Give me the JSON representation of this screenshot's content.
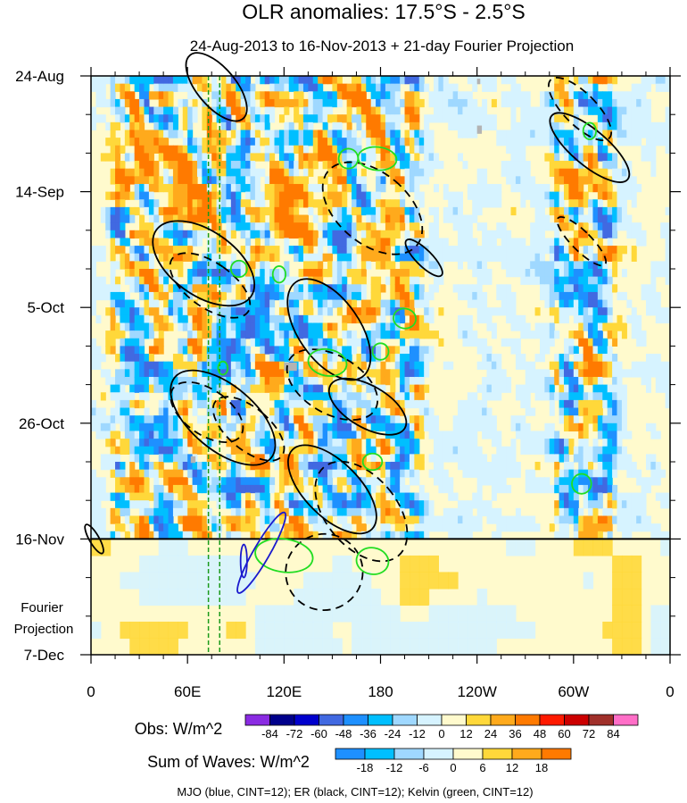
{
  "chart_data": {
    "type": "heatmap",
    "title": "OLR anomalies: 17.5°S - 2.5°S",
    "subtitle": "24-Aug-2013 to 16-Nov-2013 + 21-day Fourier Projection",
    "x_ticks": [
      "0",
      "60E",
      "120E",
      "180",
      "120W",
      "60W",
      "0"
    ],
    "x_tick_values": [
      0,
      60,
      120,
      180,
      240,
      300,
      360
    ],
    "xlim": [
      0,
      360
    ],
    "y_ticks": [
      "24-Aug",
      "14-Sep",
      "5-Oct",
      "26-Oct",
      "16-Nov",
      "7-Dec"
    ],
    "y_tick_days": [
      0,
      21,
      42,
      63,
      84,
      105
    ],
    "ylim_days": [
      0,
      105
    ],
    "obs_end_label": "16-Nov",
    "projection_label": [
      "Fourier",
      "Projection"
    ],
    "dashed_green_lines_lon": [
      73,
      80
    ],
    "obs_colorbar": {
      "label": "Obs: W/m^2",
      "levels": [
        "-84",
        "-72",
        "-60",
        "-48",
        "-36",
        "-24",
        "-12",
        "0",
        "12",
        "24",
        "36",
        "48",
        "60",
        "72",
        "84"
      ],
      "colors": [
        "#8a2be2",
        "#00008b",
        "#0000cd",
        "#4169e1",
        "#1e90ff",
        "#00bfff",
        "#9fd8ff",
        "#d6f3ff",
        "#fffacd",
        "#ffd83a",
        "#ffaa1c",
        "#ff7a00",
        "#ff1a00",
        "#cc0000",
        "#a0302a",
        "#ff6ec7"
      ]
    },
    "waves_colorbar": {
      "label": "Sum of Waves: W/m^2",
      "levels": [
        "-18",
        "-12",
        "-6",
        "0",
        "6",
        "12",
        "18"
      ],
      "colors": [
        "#1e90ff",
        "#00bfff",
        "#9fd8ff",
        "#d6f3ff",
        "#fffacd",
        "#ffd83a",
        "#ffaa1c",
        "#ff7a00"
      ]
    },
    "legend_text": "MJO (blue, CINT=12); ER (black, CINT=12); Kelvin (green, CINT=12)",
    "series": [
      {
        "name": "MJO",
        "color": "#0000cd",
        "contour_interval": 12
      },
      {
        "name": "ER",
        "color": "#000000",
        "contour_interval": 12
      },
      {
        "name": "Kelvin",
        "color": "#00cc00",
        "contour_interval": 12
      }
    ],
    "er_contours": [
      {
        "lon": 78,
        "day": 2,
        "rx": 12,
        "ry": 2.5,
        "angle": -40,
        "dashed": false
      },
      {
        "lon": 70,
        "day": 34,
        "rx": 20,
        "ry": 3.5,
        "angle": -55,
        "dashed": false
      },
      {
        "lon": 74,
        "day": 38,
        "rx": 14,
        "ry": 2.8,
        "angle": -55,
        "dashed": true
      },
      {
        "lon": 175,
        "day": 24,
        "rx": 22,
        "ry": 3.5,
        "angle": -50,
        "dashed": true
      },
      {
        "lon": 148,
        "day": 46,
        "rx": 19,
        "ry": 3.5,
        "angle": -35,
        "dashed": false
      },
      {
        "lon": 150,
        "day": 56,
        "rx": 18,
        "ry": 3,
        "angle": -60,
        "dashed": true
      },
      {
        "lon": 172,
        "day": 60,
        "rx": 13,
        "ry": 2.6,
        "angle": -60,
        "dashed": false
      },
      {
        "lon": 72,
        "day": 61,
        "rx": 14,
        "ry": 2.5,
        "angle": -55,
        "dashed": true
      },
      {
        "lon": 82,
        "day": 62,
        "rx": 20,
        "ry": 3.8,
        "angle": -50,
        "dashed": false
      },
      {
        "lon": 98,
        "day": 64,
        "rx": 13,
        "ry": 2.6,
        "angle": -50,
        "dashed": true
      },
      {
        "lon": 150,
        "day": 75,
        "rx": 17,
        "ry": 3.4,
        "angle": -45,
        "dashed": false
      },
      {
        "lon": 168,
        "day": 79,
        "rx": 22,
        "ry": 3.5,
        "angle": -40,
        "dashed": true
      },
      {
        "lon": 145,
        "day": 90,
        "rx": 24,
        "ry": 2.3,
        "angle": -20,
        "dashed": true
      },
      {
        "lon": 304,
        "day": 6,
        "rx": 10,
        "ry": 2.5,
        "angle": -45,
        "dashed": true
      },
      {
        "lon": 310,
        "day": 13,
        "rx": 11,
        "ry": 3,
        "angle": -50,
        "dashed": false
      },
      {
        "lon": 305,
        "day": 30,
        "rx": 6,
        "ry": 2,
        "angle": -45,
        "dashed": true
      },
      {
        "lon": 207,
        "day": 33,
        "rx": 5,
        "ry": 1.5,
        "angle": -45,
        "dashed": false
      },
      {
        "lon": 2,
        "day": 84,
        "rx": 3,
        "ry": 1,
        "angle": -30,
        "dashed": false
      }
    ],
    "mjo_contours": [
      {
        "lon": 106,
        "day": 86.5,
        "rx": 5,
        "ry": 2.8,
        "angle": 30
      },
      {
        "lon": 95,
        "day": 88,
        "rx": 2,
        "ry": 1,
        "angle": 0
      }
    ],
    "kelvin_contours": [
      {
        "lon": 120,
        "day": 87,
        "rx": 18,
        "ry": 1,
        "angle": 8
      },
      {
        "lon": 175,
        "day": 88,
        "rx": 10,
        "ry": 0.8,
        "angle": 10
      },
      {
        "lon": 147,
        "day": 52,
        "rx": 12,
        "ry": 0.8,
        "angle": 10
      },
      {
        "lon": 195,
        "day": 44,
        "rx": 7,
        "ry": 0.6,
        "angle": 10
      },
      {
        "lon": 178,
        "day": 15,
        "rx": 12,
        "ry": 0.7,
        "angle": 5
      },
      {
        "lon": 160,
        "day": 15,
        "rx": 6,
        "ry": 0.6,
        "angle": 10
      },
      {
        "lon": 92,
        "day": 35,
        "rx": 5,
        "ry": 0.5,
        "angle": 0
      },
      {
        "lon": 117,
        "day": 36,
        "rx": 4,
        "ry": 0.5,
        "angle": 0
      },
      {
        "lon": 180,
        "day": 50,
        "rx": 5,
        "ry": 0.5,
        "angle": 0
      },
      {
        "lon": 175,
        "day": 70,
        "rx": 6,
        "ry": 0.5,
        "angle": 0
      },
      {
        "lon": 310,
        "day": 10,
        "rx": 4,
        "ry": 0.5,
        "angle": 0
      },
      {
        "lon": 305,
        "day": 74,
        "rx": 6,
        "ry": 0.6,
        "angle": 0
      },
      {
        "lon": 82,
        "day": 53,
        "rx": 3,
        "ry": 0.4,
        "angle": 0
      }
    ],
    "missing_data_boxes": [
      {
        "lon": 120,
        "day": 52,
        "w_lon": 8,
        "h_day": 1.5
      },
      {
        "lon": 240,
        "day": 9,
        "w_lon": 3,
        "h_day": 1.5
      },
      {
        "lon": 240,
        "day": 0.5,
        "w_lon": 2,
        "h_day": 1
      },
      {
        "lon": 62,
        "day": 69,
        "w_lon": 3,
        "h_day": 1.2
      }
    ],
    "active_regions": [
      {
        "lon_min": 5,
        "lon_max": 210,
        "day_min": 0,
        "day_max": 84,
        "strength": 1.0
      },
      {
        "lon_min": 280,
        "lon_max": 330,
        "day_min": 0,
        "day_max": 84,
        "strength": 1.0
      }
    ]
  }
}
